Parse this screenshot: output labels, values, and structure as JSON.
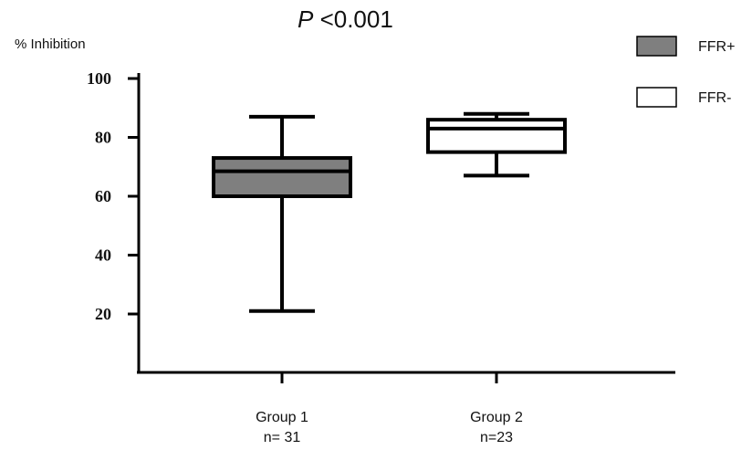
{
  "chart_data": {
    "type": "box",
    "title_italic": "P",
    "title_rest": " <0.001",
    "ylabel": "% Inhibition",
    "ylim": [
      0,
      100
    ],
    "yticks": [
      20,
      40,
      60,
      80,
      100
    ],
    "grid": false,
    "legend_position": "top-right",
    "legend": [
      {
        "label": "FFR+",
        "color": "#7f7f7f"
      },
      {
        "label": "FFR-",
        "color": "#ffffff"
      }
    ],
    "categories": [
      {
        "line1": "Group 1",
        "line2": "n= 31"
      },
      {
        "line1": "Group 2",
        "line2": "n=23"
      }
    ],
    "series": [
      {
        "legend_label": "FFR+",
        "color": "#7f7f7f",
        "min": 21,
        "q1": 60,
        "median": 68.5,
        "q3": 73,
        "max": 87
      },
      {
        "legend_label": "FFR-",
        "color": "#ffffff",
        "min": 67,
        "q1": 75,
        "median": 83,
        "q3": 86,
        "max": 88
      }
    ]
  }
}
